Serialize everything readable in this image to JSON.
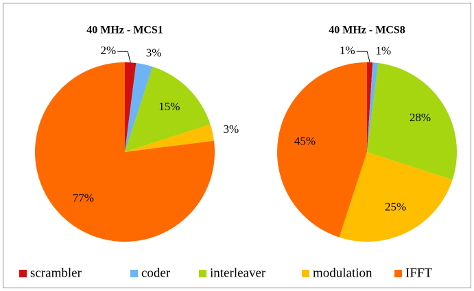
{
  "chart_data": [
    {
      "type": "pie",
      "title": "40 MHz - MCS1",
      "values": [
        2,
        3,
        15,
        3,
        77
      ],
      "value_labels": [
        "2%",
        "3%",
        "15%",
        "3%",
        "77%"
      ]
    },
    {
      "type": "pie",
      "title": "40 MHz - MCS8",
      "values": [
        1,
        1,
        28,
        25,
        45
      ],
      "value_labels": [
        "1%",
        "1%",
        "28%",
        "25%",
        "45%"
      ]
    }
  ],
  "legend": [
    {
      "name": "scrambler",
      "color": "#d01010"
    },
    {
      "name": "coder",
      "color": "#6cb4f5"
    },
    {
      "name": "interleaver",
      "color": "#a5d610"
    },
    {
      "name": "modulation",
      "color": "#ffbe00"
    },
    {
      "name": "IFFT",
      "color": "#ff6a00"
    }
  ]
}
